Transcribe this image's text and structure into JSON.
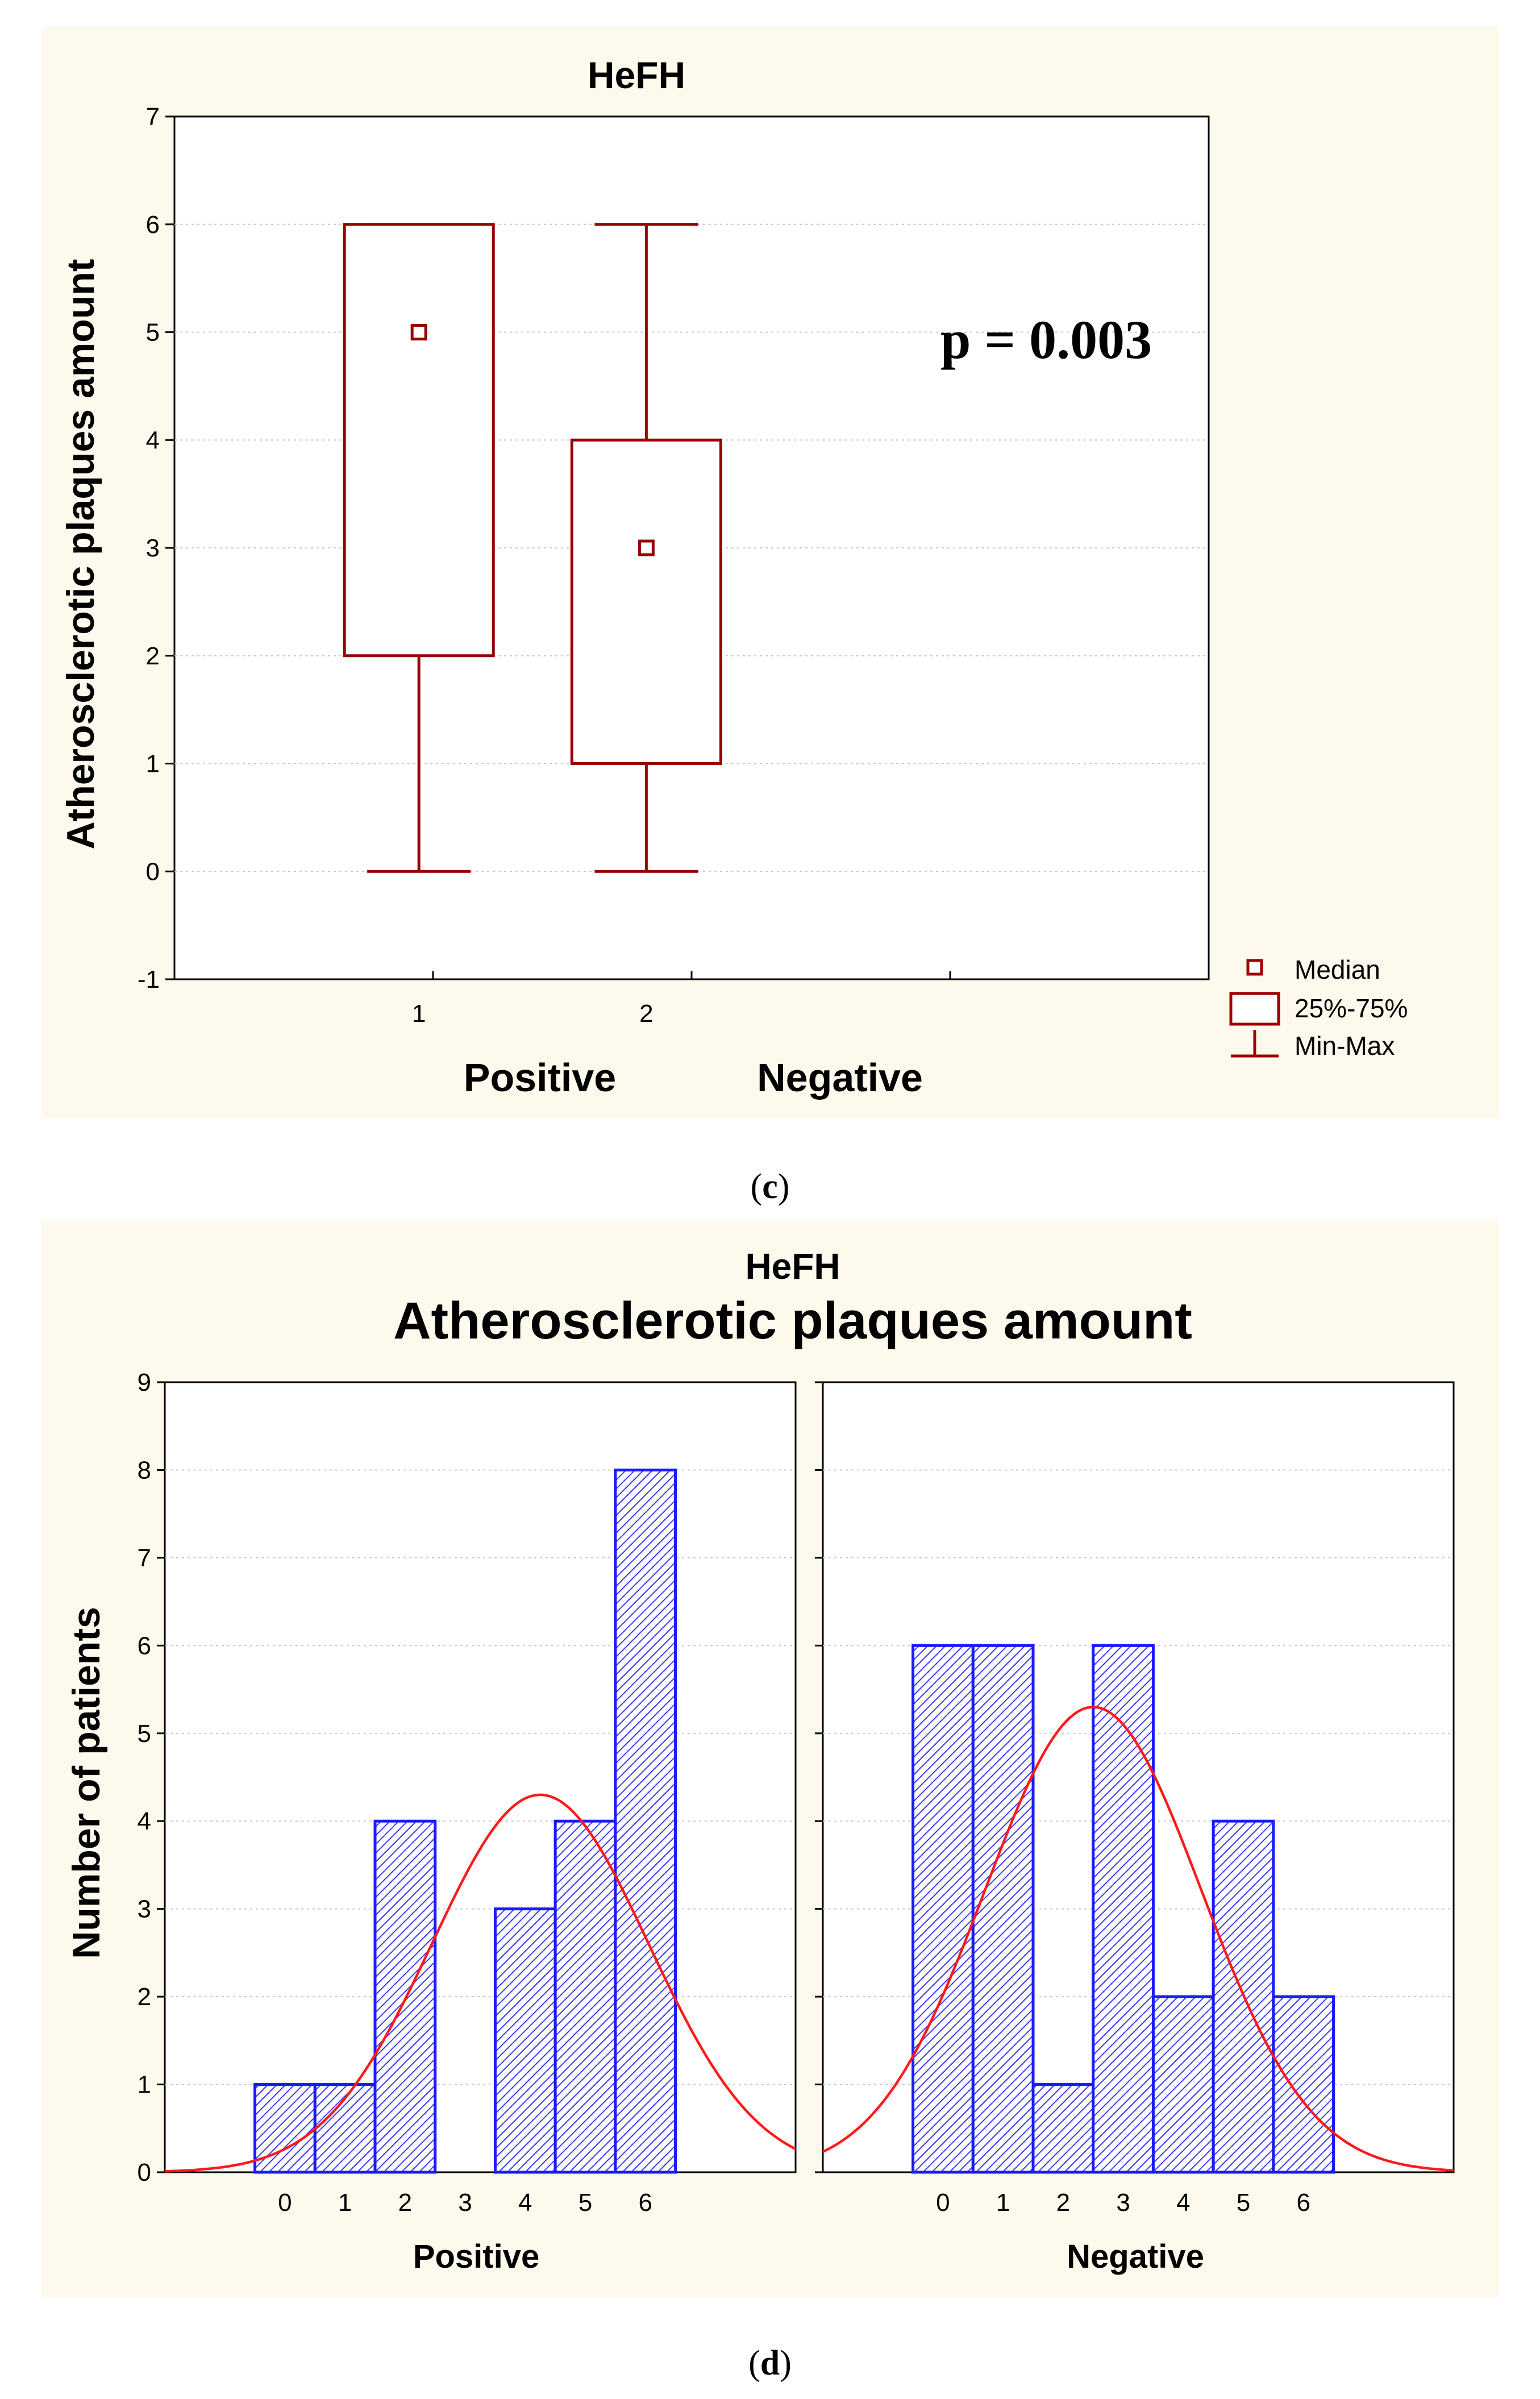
{
  "chart_data": [
    {
      "type": "box",
      "title": "HeFH",
      "ylabel": "Atherosclerotic plaques amount",
      "ylim": [
        -1,
        7
      ],
      "y_ticks": [
        "-1",
        "0",
        "1",
        "2",
        "3",
        "4",
        "5",
        "6",
        "7"
      ],
      "x_ticks": [
        "1",
        "2"
      ],
      "group_labels": [
        "Positive",
        "Negative"
      ],
      "boxes": [
        {
          "group": "Positive",
          "min": 0,
          "q1": 2,
          "median": 5,
          "q3": 6,
          "max": 6
        },
        {
          "group": "Negative",
          "min": 0,
          "q1": 1,
          "median": 3,
          "q3": 4,
          "max": 6
        }
      ],
      "annotation": "p = 0.003",
      "legend": [
        "Median",
        "25%-75%",
        "Min-Max"
      ],
      "caption_letter": "c",
      "caption": "(c)"
    },
    {
      "type": "bar",
      "title": "HeFH",
      "subtitle": "Atherosclerotic plaques amount",
      "ylabel": "Number of patients",
      "ylim": [
        0,
        9
      ],
      "y_ticks": [
        "0",
        "1",
        "2",
        "3",
        "4",
        "5",
        "6",
        "7",
        "8",
        "9"
      ],
      "categories": [
        "0",
        "1",
        "2",
        "3",
        "4",
        "5",
        "6"
      ],
      "series": [
        {
          "name": "Positive",
          "values": [
            1,
            1,
            4,
            0,
            3,
            4,
            8
          ],
          "normal_fit": {
            "mean": 4.25,
            "sd": 1.8,
            "peak": 4.3
          }
        },
        {
          "name": "Negative",
          "values": [
            6,
            6,
            1,
            6,
            2,
            4,
            2
          ],
          "normal_fit": {
            "mean": 2.5,
            "sd": 1.8,
            "peak": 5.3
          }
        }
      ],
      "caption_letter": "d",
      "caption": "(d)"
    }
  ],
  "colors": {
    "panel_background": "#fdf9ec",
    "box_stroke": "#990000",
    "bar_stroke": "#1a1aff",
    "curve": "#ff1a1a"
  }
}
